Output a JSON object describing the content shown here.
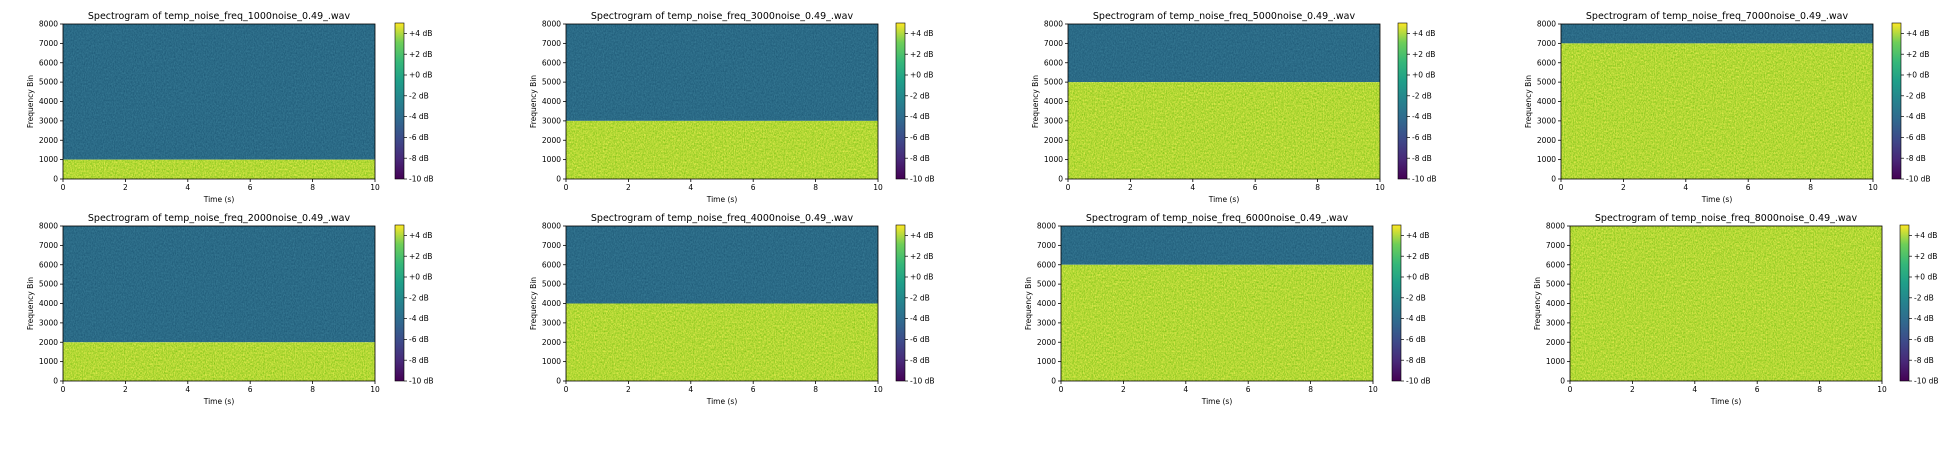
{
  "figure": {
    "background": "#ffffff"
  },
  "colormap": {
    "name": "viridis",
    "low_level_color": "#2a6a86",
    "high_level_color": "#a9d63a"
  },
  "chart_data": [
    {
      "type": "heatmap",
      "title": "Spectrogram of temp_noise_freq_1000noise_0.49_.wav",
      "xlabel": "Time (s)",
      "ylabel": "Frequency Bin",
      "xlim": [
        0,
        10
      ],
      "ylim": [
        0,
        8000
      ],
      "xticks": [
        "0",
        "2",
        "4",
        "6",
        "8",
        "10"
      ],
      "yticks": [
        "0",
        "1000",
        "2000",
        "3000",
        "4000",
        "5000",
        "6000",
        "7000",
        "8000"
      ],
      "noise_cutoff_frequency": 1000,
      "noise_level_db_below_cutoff": 3,
      "level_db_above_cutoff": -4,
      "colorbar": {
        "range_db": [
          -10,
          5
        ],
        "ticks": [
          "+4 dB",
          "+2 dB",
          "+0 dB",
          "-2 dB",
          "-4 dB",
          "-6 dB",
          "-8 dB",
          "-10 dB"
        ]
      }
    },
    {
      "type": "heatmap",
      "title": "Spectrogram of temp_noise_freq_3000noise_0.49_.wav",
      "xlabel": "Time (s)",
      "ylabel": "Frequency Bin",
      "xlim": [
        0,
        10
      ],
      "ylim": [
        0,
        8000
      ],
      "xticks": [
        "0",
        "2",
        "4",
        "6",
        "8",
        "10"
      ],
      "yticks": [
        "0",
        "1000",
        "2000",
        "3000",
        "4000",
        "5000",
        "6000",
        "7000",
        "8000"
      ],
      "noise_cutoff_frequency": 3000,
      "noise_level_db_below_cutoff": 3,
      "level_db_above_cutoff": -4,
      "colorbar": {
        "range_db": [
          -10,
          5
        ],
        "ticks": [
          "+4 dB",
          "+2 dB",
          "+0 dB",
          "-2 dB",
          "-4 dB",
          "-6 dB",
          "-8 dB",
          "-10 dB"
        ]
      }
    },
    {
      "type": "heatmap",
      "title": "Spectrogram of temp_noise_freq_5000noise_0.49_.wav",
      "xlabel": "Time (s)",
      "ylabel": "Frequency Bin",
      "xlim": [
        0,
        10
      ],
      "ylim": [
        0,
        8000
      ],
      "xticks": [
        "0",
        "2",
        "4",
        "6",
        "8",
        "10"
      ],
      "yticks": [
        "0",
        "1000",
        "2000",
        "3000",
        "4000",
        "5000",
        "6000",
        "7000",
        "8000"
      ],
      "noise_cutoff_frequency": 5000,
      "noise_level_db_below_cutoff": 3,
      "level_db_above_cutoff": -4,
      "colorbar": {
        "range_db": [
          -10,
          5
        ],
        "ticks": [
          "+4 dB",
          "+2 dB",
          "+0 dB",
          "-2 dB",
          "-4 dB",
          "-6 dB",
          "-8 dB",
          "-10 dB"
        ]
      }
    },
    {
      "type": "heatmap",
      "title": "Spectrogram of temp_noise_freq_7000noise_0.49_.wav",
      "xlabel": "Time (s)",
      "ylabel": "Frequency Bin",
      "xlim": [
        0,
        10
      ],
      "ylim": [
        0,
        8000
      ],
      "xticks": [
        "0",
        "2",
        "4",
        "6",
        "8",
        "10"
      ],
      "yticks": [
        "0",
        "1000",
        "2000",
        "3000",
        "4000",
        "5000",
        "6000",
        "7000",
        "8000"
      ],
      "noise_cutoff_frequency": 7000,
      "noise_level_db_below_cutoff": 3,
      "level_db_above_cutoff": -4,
      "colorbar": {
        "range_db": [
          -10,
          5
        ],
        "ticks": [
          "+4 dB",
          "+2 dB",
          "+0 dB",
          "-2 dB",
          "-4 dB",
          "-6 dB",
          "-8 dB",
          "-10 dB"
        ]
      }
    },
    {
      "type": "heatmap",
      "title": "Spectrogram of temp_noise_freq_2000noise_0.49_.wav",
      "xlabel": "Time (s)",
      "ylabel": "Frequency Bin",
      "xlim": [
        0,
        10
      ],
      "ylim": [
        0,
        8000
      ],
      "xticks": [
        "0",
        "2",
        "4",
        "6",
        "8",
        "10"
      ],
      "yticks": [
        "0",
        "1000",
        "2000",
        "3000",
        "4000",
        "5000",
        "6000",
        "7000",
        "8000"
      ],
      "noise_cutoff_frequency": 2000,
      "noise_level_db_below_cutoff": 3,
      "level_db_above_cutoff": -4,
      "colorbar": {
        "range_db": [
          -10,
          5
        ],
        "ticks": [
          "+4 dB",
          "+2 dB",
          "+0 dB",
          "-2 dB",
          "-4 dB",
          "-6 dB",
          "-8 dB",
          "-10 dB"
        ]
      }
    },
    {
      "type": "heatmap",
      "title": "Spectrogram of temp_noise_freq_4000noise_0.49_.wav",
      "xlabel": "Time (s)",
      "ylabel": "Frequency Bin",
      "xlim": [
        0,
        10
      ],
      "ylim": [
        0,
        8000
      ],
      "xticks": [
        "0",
        "2",
        "4",
        "6",
        "8",
        "10"
      ],
      "yticks": [
        "0",
        "1000",
        "2000",
        "3000",
        "4000",
        "5000",
        "6000",
        "7000",
        "8000"
      ],
      "noise_cutoff_frequency": 4000,
      "noise_level_db_below_cutoff": 3,
      "level_db_above_cutoff": -4,
      "colorbar": {
        "range_db": [
          -10,
          5
        ],
        "ticks": [
          "+4 dB",
          "+2 dB",
          "+0 dB",
          "-2 dB",
          "-4 dB",
          "-6 dB",
          "-8 dB",
          "-10 dB"
        ]
      }
    },
    {
      "type": "heatmap",
      "title": "Spectrogram of temp_noise_freq_6000noise_0.49_.wav",
      "xlabel": "Time (s)",
      "ylabel": "Frequency Bin",
      "xlim": [
        0,
        10
      ],
      "ylim": [
        0,
        8000
      ],
      "xticks": [
        "0",
        "2",
        "4",
        "6",
        "8",
        "10"
      ],
      "yticks": [
        "0",
        "1000",
        "2000",
        "3000",
        "4000",
        "5000",
        "6000",
        "7000",
        "8000"
      ],
      "noise_cutoff_frequency": 6000,
      "noise_level_db_below_cutoff": 3,
      "level_db_above_cutoff": -4,
      "colorbar": {
        "range_db": [
          -10,
          5
        ],
        "ticks": [
          "+4 dB",
          "+2 dB",
          "+0 dB",
          "-2 dB",
          "-4 dB",
          "-6 dB",
          "-8 dB",
          "-10 dB"
        ]
      }
    },
    {
      "type": "heatmap",
      "title": "Spectrogram of temp_noise_freq_8000noise_0.49_.wav",
      "xlabel": "Time (s)",
      "ylabel": "Frequency Bin",
      "xlim": [
        0,
        10
      ],
      "ylim": [
        0,
        8000
      ],
      "xticks": [
        "0",
        "2",
        "4",
        "6",
        "8",
        "10"
      ],
      "yticks": [
        "0",
        "1000",
        "2000",
        "3000",
        "4000",
        "5000",
        "6000",
        "7000",
        "8000"
      ],
      "noise_cutoff_frequency": 8000,
      "noise_level_db_below_cutoff": 3,
      "level_db_above_cutoff": -4,
      "colorbar": {
        "range_db": [
          -10,
          5
        ],
        "ticks": [
          "+4 dB",
          "+2 dB",
          "+0 dB",
          "-2 dB",
          "-4 dB",
          "-6 dB",
          "-8 dB",
          "-10 dB"
        ]
      }
    }
  ]
}
